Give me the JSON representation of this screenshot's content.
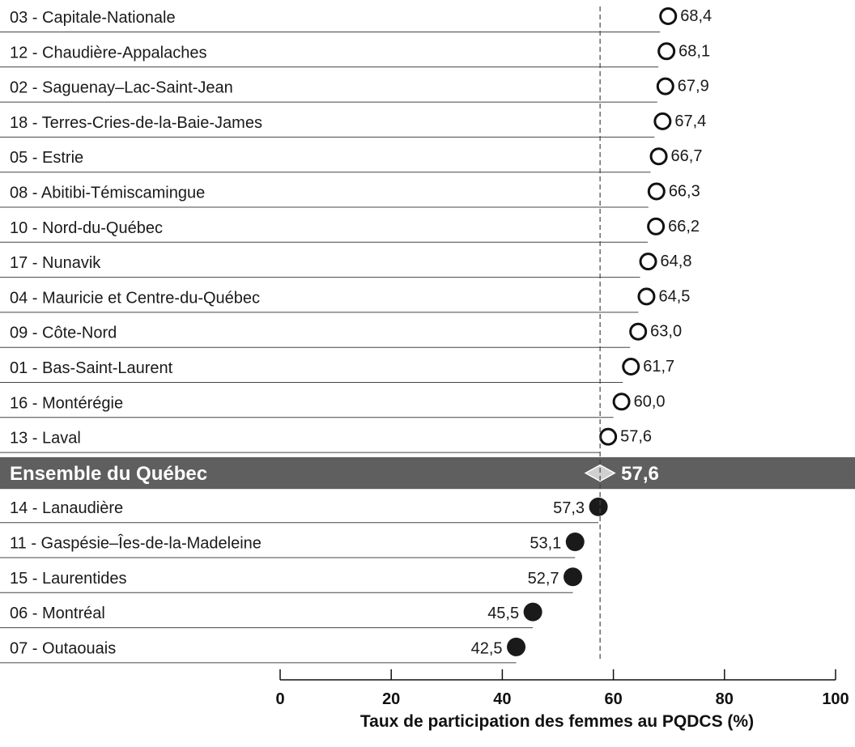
{
  "chart_data": {
    "type": "dot",
    "xlabel": "Taux de participation des femmes au PQDCS (%)",
    "xlim": [
      0,
      100
    ],
    "xticks": [
      "0",
      "20",
      "40",
      "60",
      "80",
      "100"
    ],
    "reference": {
      "label": "Ensemble du Québec",
      "value": 57.6,
      "value_label": "57,6"
    },
    "rows": [
      {
        "region": "03 - Capitale-Nationale",
        "value": 68.4,
        "value_label": "68,4",
        "above": true
      },
      {
        "region": "12 - Chaudière-Appalaches",
        "value": 68.1,
        "value_label": "68,1",
        "above": true
      },
      {
        "region": "02 - Saguenay–Lac-Saint-Jean",
        "value": 67.9,
        "value_label": "67,9",
        "above": true
      },
      {
        "region": "18 - Terres-Cries-de-la-Baie-James",
        "value": 67.4,
        "value_label": "67,4",
        "above": true
      },
      {
        "region": "05 - Estrie",
        "value": 66.7,
        "value_label": "66,7",
        "above": true
      },
      {
        "region": "08 - Abitibi-Témiscamingue",
        "value": 66.3,
        "value_label": "66,3",
        "above": true
      },
      {
        "region": "10 - Nord-du-Québec",
        "value": 66.2,
        "value_label": "66,2",
        "above": true
      },
      {
        "region": "17 - Nunavik",
        "value": 64.8,
        "value_label": "64,8",
        "above": true
      },
      {
        "region": "04 - Mauricie et Centre-du-Québec",
        "value": 64.5,
        "value_label": "64,5",
        "above": true
      },
      {
        "region": "09 - Côte-Nord",
        "value": 63.0,
        "value_label": "63,0",
        "above": true
      },
      {
        "region": "01 - Bas-Saint-Laurent",
        "value": 61.7,
        "value_label": "61,7",
        "above": true
      },
      {
        "region": "16 - Montérégie",
        "value": 60.0,
        "value_label": "60,0",
        "above": true
      },
      {
        "region": "13 - Laval",
        "value": 57.6,
        "value_label": "57,6",
        "above": true
      },
      {
        "region": "Ensemble du Québec",
        "value": 57.6,
        "value_label": "57,6",
        "reference": true
      },
      {
        "region": "14 - Lanaudière",
        "value": 57.3,
        "value_label": "57,3",
        "above": false
      },
      {
        "region": "11 - Gaspésie–Îes-de-la-Madeleine",
        "value": 53.1,
        "value_label": "53,1",
        "above": false
      },
      {
        "region": "15 - Laurentides",
        "value": 52.7,
        "value_label": "52,7",
        "above": false
      },
      {
        "region": "06 - Montréal",
        "value": 45.5,
        "value_label": "45,5",
        "above": false
      },
      {
        "region": "07 - Outaouais",
        "value": 42.5,
        "value_label": "42,5",
        "above": false
      }
    ],
    "colors": {
      "reference_band": "#5f5f5f",
      "reference_marker": "#d0d0d0",
      "filled_marker": "#1a1a1a",
      "open_marker_stroke": "#111111",
      "row_line": "#444444"
    }
  }
}
